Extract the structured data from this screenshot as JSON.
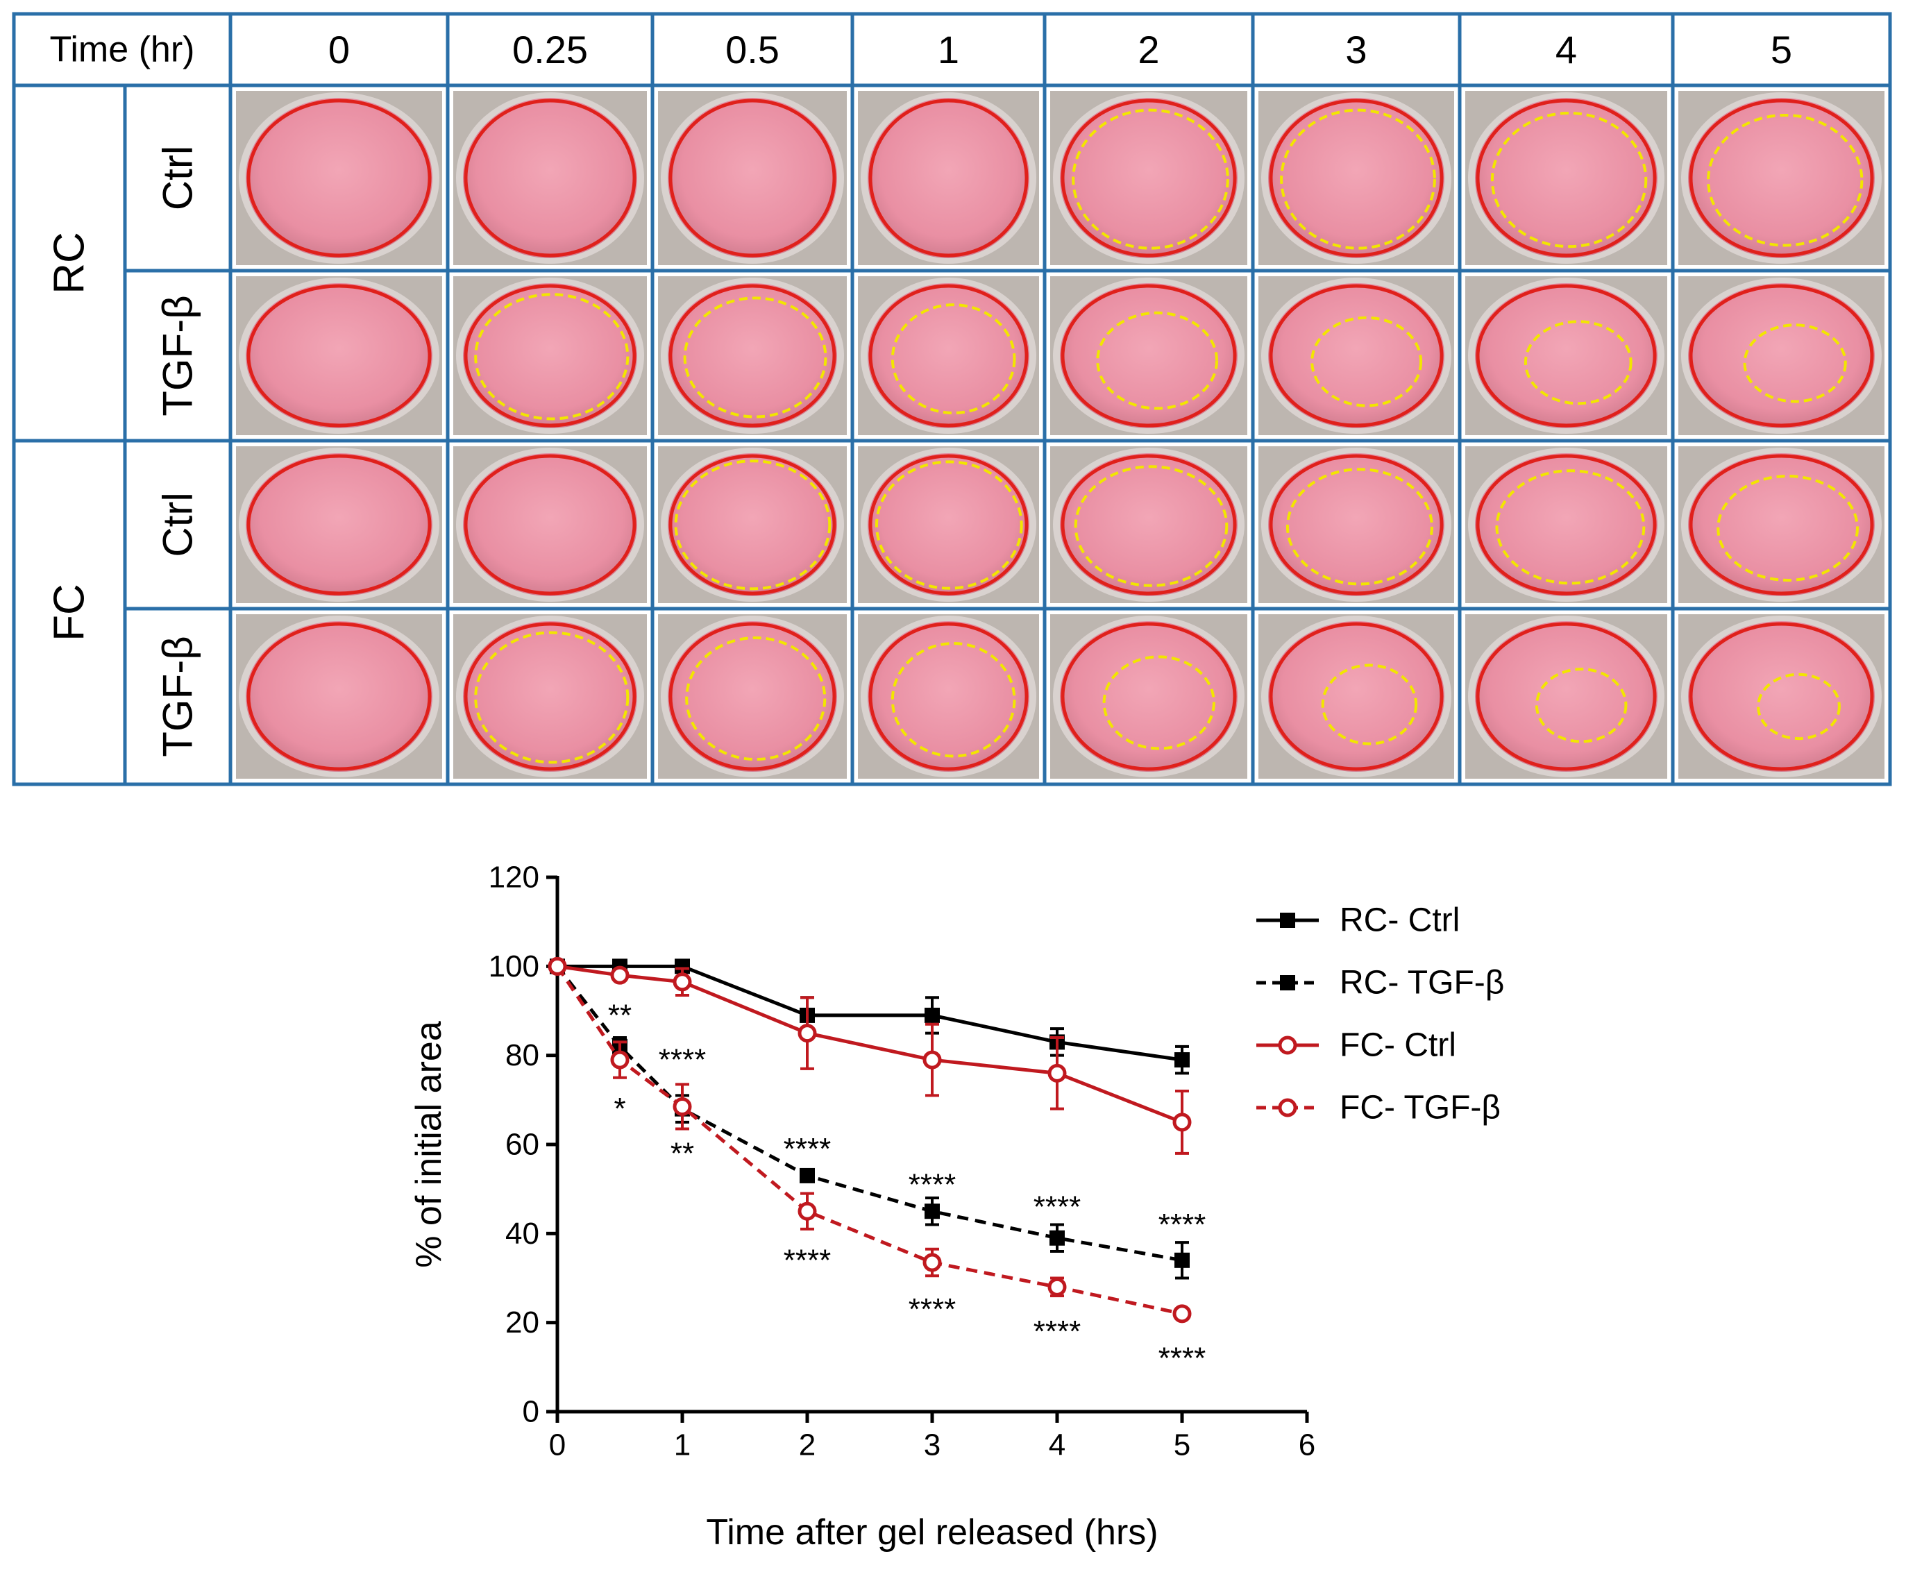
{
  "grid": {
    "time_label": "Time (hr)",
    "time_points": [
      "0",
      "0.25",
      "0.5",
      "1",
      "2",
      "3",
      "4",
      "5"
    ],
    "groups": [
      {
        "label": "RC",
        "rows": [
          "Ctrl",
          "TGF-β"
        ]
      },
      {
        "label": "FC",
        "rows": [
          "Ctrl",
          "TGF-β"
        ]
      }
    ],
    "gel_area_percent_estimate": [
      [
        100,
        100,
        100,
        100,
        89,
        89,
        83,
        79
      ],
      [
        100,
        90,
        82,
        68,
        53,
        45,
        39,
        34
      ],
      [
        100,
        100,
        98,
        96,
        85,
        79,
        76,
        65
      ],
      [
        100,
        90,
        79,
        68,
        45,
        33,
        28,
        22
      ]
    ],
    "colors": {
      "border": "#2a6fa8",
      "gel_outline": "#e0201b",
      "contraction_outline": "#f2e600",
      "dish": "#e98fa3"
    }
  },
  "chart_data": {
    "type": "line",
    "title": "",
    "xlabel": "Time after gel released (hrs)",
    "ylabel": "% of initial area",
    "xlim": [
      0,
      6
    ],
    "ylim": [
      0,
      120
    ],
    "x_ticks": [
      "0",
      "1",
      "2",
      "3",
      "4",
      "5",
      "6"
    ],
    "y_ticks": [
      "0",
      "20",
      "40",
      "60",
      "80",
      "100",
      "120"
    ],
    "legend_position": "top-right",
    "series": [
      {
        "name": "RC- Ctrl",
        "style": "solid",
        "marker": "square",
        "color": "#000000",
        "x": [
          0,
          0.5,
          1,
          2,
          3,
          4,
          5
        ],
        "y": [
          100,
          100,
          100,
          89,
          89,
          83,
          79
        ],
        "err": [
          0,
          1,
          1,
          4,
          4,
          3,
          3
        ]
      },
      {
        "name": "RC- TGF-β",
        "style": "dashed",
        "marker": "square",
        "color": "#000000",
        "x": [
          0,
          0.5,
          1,
          2,
          3,
          4,
          5
        ],
        "y": [
          100,
          82,
          68,
          53,
          45,
          39,
          34
        ],
        "err": [
          0,
          2,
          3,
          1,
          3,
          3,
          4
        ]
      },
      {
        "name": "FC- Ctrl",
        "style": "solid",
        "marker": "circle",
        "color": "#c0191f",
        "x": [
          0,
          0.5,
          1,
          2,
          3,
          4,
          5
        ],
        "y": [
          100,
          98,
          96.5,
          85,
          79,
          76,
          65
        ],
        "err": [
          0,
          1,
          3,
          8,
          8,
          8,
          7
        ]
      },
      {
        "name": "FC- TGF-β",
        "style": "dashed",
        "marker": "circle",
        "color": "#c0191f",
        "x": [
          0,
          0.5,
          1,
          2,
          3,
          4,
          5
        ],
        "y": [
          100,
          79,
          68.5,
          45,
          33.5,
          28,
          22
        ],
        "err": [
          0,
          4,
          5,
          4,
          3,
          2,
          1
        ]
      }
    ],
    "annotations": [
      {
        "text": "**",
        "x": 0.5,
        "y": 89
      },
      {
        "text": "*",
        "x": 0.5,
        "y": 68
      },
      {
        "text": "****",
        "x": 1.0,
        "y": 79
      },
      {
        "text": "**",
        "x": 1.0,
        "y": 58
      },
      {
        "text": "****",
        "x": 2.0,
        "y": 59
      },
      {
        "text": "****",
        "x": 2.0,
        "y": 34
      },
      {
        "text": "****",
        "x": 3.0,
        "y": 51
      },
      {
        "text": "****",
        "x": 3.0,
        "y": 23
      },
      {
        "text": "****",
        "x": 4.0,
        "y": 46
      },
      {
        "text": "****",
        "x": 4.0,
        "y": 18
      },
      {
        "text": "****",
        "x": 5.0,
        "y": 42
      },
      {
        "text": "****",
        "x": 5.0,
        "y": 12
      }
    ]
  }
}
